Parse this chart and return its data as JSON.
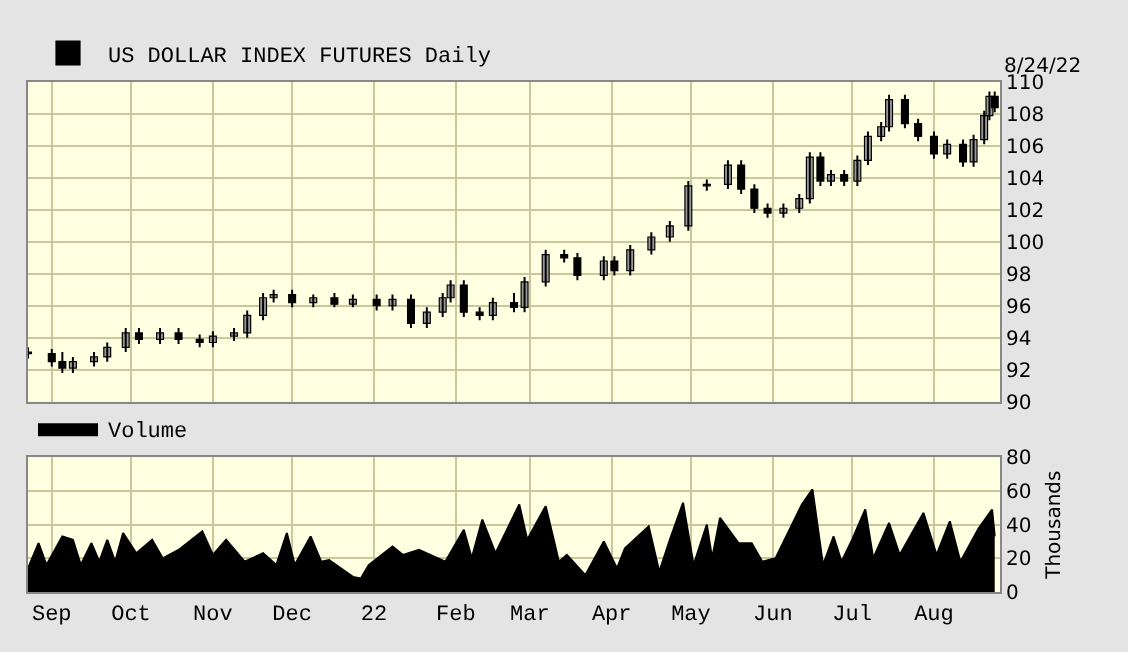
{
  "chart_data": [
    {
      "type": "candlestick",
      "legend": "top left",
      "grid": true,
      "tick_labels": "y",
      "annotations": [
        "8/24/22"
      ],
      "x": [
        "2021-08-23",
        "2021-09-01",
        "2021-09-05",
        "2021-09-09",
        "2021-09-17",
        "2021-09-22",
        "2021-09-29",
        "2021-10-04",
        "2021-10-12",
        "2021-10-19",
        "2021-10-27",
        "2021-11-01",
        "2021-11-09",
        "2021-11-14",
        "2021-11-20",
        "2021-11-24",
        "2021-12-01",
        "2021-12-09",
        "2021-12-17",
        "2021-12-24",
        "2022-01-02",
        "2022-01-08",
        "2022-01-15",
        "2022-01-21",
        "2022-01-27",
        "2022-01-30",
        "2022-02-04",
        "2022-02-10",
        "2022-02-15",
        "2022-02-23",
        "2022-02-27",
        "2022-03-07",
        "2022-03-14",
        "2022-03-19",
        "2022-03-29",
        "2022-04-02",
        "2022-04-08",
        "2022-04-16",
        "2022-04-23",
        "2022-04-30",
        "2022-05-07",
        "2022-05-15",
        "2022-05-20",
        "2022-05-25",
        "2022-05-30",
        "2022-06-05",
        "2022-06-11",
        "2022-06-15",
        "2022-06-19",
        "2022-06-23",
        "2022-06-28",
        "2022-07-03",
        "2022-07-07",
        "2022-07-12",
        "2022-07-15",
        "2022-07-21",
        "2022-07-26",
        "2022-08-01",
        "2022-08-06",
        "2022-08-12",
        "2022-08-16",
        "2022-08-20",
        "2022-08-22",
        "2022-08-24"
      ],
      "series": [
        {
          "name": "US DOLLAR INDEX FUTURES Daily",
          "color": "#000000",
          "ohlc": [
            [
              93.1,
              93.4,
              92.7,
              93.0
            ],
            [
              93.0,
              93.3,
              92.2,
              92.5
            ],
            [
              92.5,
              93.1,
              91.8,
              92.1
            ],
            [
              92.1,
              92.8,
              91.8,
              92.5
            ],
            [
              92.5,
              93.1,
              92.2,
              92.8
            ],
            [
              92.8,
              93.7,
              92.5,
              93.4
            ],
            [
              93.4,
              94.6,
              93.1,
              94.3
            ],
            [
              94.3,
              94.6,
              93.6,
              93.9
            ],
            [
              93.9,
              94.6,
              93.6,
              94.3
            ],
            [
              94.3,
              94.6,
              93.6,
              93.9
            ],
            [
              93.9,
              94.2,
              93.4,
              93.7
            ],
            [
              93.7,
              94.4,
              93.4,
              94.1
            ],
            [
              94.1,
              94.6,
              93.8,
              94.3
            ],
            [
              94.3,
              95.7,
              94.0,
              95.4
            ],
            [
              95.4,
              96.8,
              95.1,
              96.5
            ],
            [
              96.5,
              97.0,
              96.2,
              96.7
            ],
            [
              96.7,
              97.0,
              95.9,
              96.2
            ],
            [
              96.2,
              96.7,
              95.9,
              96.5
            ],
            [
              96.5,
              96.8,
              95.9,
              96.1
            ],
            [
              96.1,
              96.7,
              95.9,
              96.4
            ],
            [
              96.4,
              96.7,
              95.7,
              96.0
            ],
            [
              96.0,
              96.7,
              95.7,
              96.4
            ],
            [
              96.4,
              96.7,
              94.6,
              94.9
            ],
            [
              94.9,
              95.9,
              94.6,
              95.6
            ],
            [
              95.6,
              96.8,
              95.3,
              96.5
            ],
            [
              96.5,
              97.6,
              96.2,
              97.3
            ],
            [
              97.3,
              97.6,
              95.3,
              95.6
            ],
            [
              95.6,
              95.9,
              95.1,
              95.4
            ],
            [
              95.4,
              96.5,
              95.1,
              96.2
            ],
            [
              96.2,
              96.8,
              95.6,
              95.9
            ],
            [
              95.9,
              97.8,
              95.6,
              97.5
            ],
            [
              97.5,
              99.5,
              97.2,
              99.2
            ],
            [
              99.2,
              99.5,
              98.7,
              99.0
            ],
            [
              99.0,
              99.3,
              97.6,
              97.9
            ],
            [
              97.9,
              99.1,
              97.6,
              98.8
            ],
            [
              98.8,
              99.1,
              97.9,
              98.2
            ],
            [
              98.2,
              99.8,
              97.9,
              99.5
            ],
            [
              99.5,
              100.6,
              99.2,
              100.3
            ],
            [
              100.3,
              101.3,
              100.0,
              101.0
            ],
            [
              101.0,
              103.8,
              100.7,
              103.5
            ],
            [
              103.5,
              103.9,
              103.2,
              103.6
            ],
            [
              103.6,
              105.1,
              103.3,
              104.8
            ],
            [
              104.8,
              105.1,
              103.0,
              103.3
            ],
            [
              103.3,
              103.6,
              101.8,
              102.1
            ],
            [
              102.1,
              102.4,
              101.5,
              101.8
            ],
            [
              101.8,
              102.4,
              101.5,
              102.1
            ],
            [
              102.1,
              103.0,
              101.8,
              102.7
            ],
            [
              102.7,
              105.6,
              102.4,
              105.3
            ],
            [
              105.3,
              105.6,
              103.5,
              103.8
            ],
            [
              103.8,
              104.5,
              103.5,
              104.2
            ],
            [
              104.2,
              104.5,
              103.5,
              103.8
            ],
            [
              103.8,
              105.4,
              103.5,
              105.1
            ],
            [
              105.1,
              106.9,
              104.8,
              106.6
            ],
            [
              106.6,
              107.5,
              106.3,
              107.2
            ],
            [
              107.2,
              109.2,
              106.9,
              108.9
            ],
            [
              108.9,
              109.2,
              107.1,
              107.4
            ],
            [
              107.4,
              107.7,
              106.3,
              106.6
            ],
            [
              106.6,
              106.9,
              105.2,
              105.5
            ],
            [
              105.5,
              106.4,
              105.2,
              106.1
            ],
            [
              106.1,
              106.4,
              104.7,
              105.0
            ],
            [
              105.0,
              106.7,
              104.7,
              106.4
            ],
            [
              106.4,
              108.2,
              106.1,
              107.9
            ],
            [
              107.9,
              109.4,
              107.6,
              109.1
            ],
            [
              109.1,
              109.4,
              108.1,
              108.4
            ]
          ]
        }
      ],
      "xlim": [
        "2021-08-23",
        "2022-08-26"
      ],
      "xticks": [
        {
          "value": "2021-09-01",
          "label": null
        },
        {
          "value": "2021-10-01",
          "label": null
        },
        {
          "value": "2021-11-01",
          "label": null
        },
        {
          "value": "2021-12-01",
          "label": null
        },
        {
          "value": "2022-01-01",
          "label": null
        },
        {
          "value": "2022-02-01",
          "label": null
        },
        {
          "value": "2022-03-01",
          "label": null
        },
        {
          "value": "2022-04-01",
          "label": null
        },
        {
          "value": "2022-05-01",
          "label": null
        },
        {
          "value": "2022-06-01",
          "label": null
        },
        {
          "value": "2022-07-01",
          "label": null
        },
        {
          "value": "2022-08-01",
          "label": null
        }
      ],
      "ylim": [
        90,
        110
      ],
      "yticks": [
        90,
        92,
        94,
        96,
        98,
        100,
        102,
        104,
        106,
        108,
        110
      ]
    },
    {
      "type": "area",
      "legend": "top left",
      "grid": true,
      "ylabel": "Thousands",
      "series": [
        {
          "name": "Volume",
          "color": "#000000",
          "x": [
            "2021-08-23",
            "2021-08-27",
            "2021-08-30",
            "2021-09-05",
            "2021-09-09",
            "2021-09-12",
            "2021-09-16",
            "2021-09-19",
            "2021-09-22",
            "2021-09-25",
            "2021-09-28",
            "2021-10-03",
            "2021-10-09",
            "2021-10-13",
            "2021-10-19",
            "2021-10-28",
            "2021-11-01",
            "2021-11-06",
            "2021-11-13",
            "2021-11-20",
            "2021-11-25",
            "2021-11-29",
            "2021-12-02",
            "2021-12-08",
            "2021-12-12",
            "2021-12-15",
            "2021-12-24",
            "2021-12-27",
            "2021-12-30",
            "2022-01-08",
            "2022-01-12",
            "2022-01-18",
            "2022-01-28",
            "2022-02-04",
            "2022-02-07",
            "2022-02-11",
            "2022-02-16",
            "2022-02-25",
            "2022-02-28",
            "2022-03-07",
            "2022-03-12",
            "2022-03-15",
            "2022-03-22",
            "2022-03-29",
            "2022-04-03",
            "2022-04-06",
            "2022-04-15",
            "2022-04-19",
            "2022-04-23",
            "2022-04-28",
            "2022-05-02",
            "2022-05-07",
            "2022-05-09",
            "2022-05-12",
            "2022-05-19",
            "2022-05-24",
            "2022-05-28",
            "2022-06-02",
            "2022-06-12",
            "2022-06-16",
            "2022-06-20",
            "2022-06-24",
            "2022-06-27",
            "2022-07-01",
            "2022-07-06",
            "2022-07-09",
            "2022-07-15",
            "2022-07-19",
            "2022-07-28",
            "2022-08-02",
            "2022-08-07",
            "2022-08-11",
            "2022-08-18",
            "2022-08-23",
            "2022-08-24"
          ],
          "values": [
            14,
            29,
            16,
            33,
            31,
            16,
            29,
            18,
            31,
            18,
            35,
            23,
            31,
            20,
            25,
            36,
            22,
            31,
            18,
            23,
            16,
            35,
            16,
            33,
            18,
            19,
            9,
            8,
            16,
            27,
            22,
            25,
            18,
            37,
            20,
            43,
            23,
            52,
            31,
            51,
            18,
            22,
            10,
            30,
            14,
            26,
            39,
            12,
            31,
            53,
            16,
            40,
            20,
            44,
            29,
            29,
            18,
            20,
            52,
            61,
            16,
            33,
            18,
            31,
            49,
            20,
            41,
            22,
            47,
            22,
            42,
            18,
            38,
            49,
            33
          ]
        }
      ],
      "xlim": [
        "2021-08-23",
        "2022-08-26"
      ],
      "xticks": [
        {
          "value": "2021-09-01",
          "label": "Sep"
        },
        {
          "value": "2021-10-01",
          "label": "Oct"
        },
        {
          "value": "2021-11-01",
          "label": "Nov"
        },
        {
          "value": "2021-12-01",
          "label": "Dec"
        },
        {
          "value": "2022-01-01",
          "label": "22"
        },
        {
          "value": "2022-02-01",
          "label": "Feb"
        },
        {
          "value": "2022-03-01",
          "label": "Mar"
        },
        {
          "value": "2022-04-01",
          "label": "Apr"
        },
        {
          "value": "2022-05-01",
          "label": "May"
        },
        {
          "value": "2022-06-01",
          "label": "Jun"
        },
        {
          "value": "2022-07-01",
          "label": "Jul"
        },
        {
          "value": "2022-08-01",
          "label": "Aug"
        }
      ],
      "ylim": [
        0,
        80
      ],
      "yticks": [
        0,
        20,
        40,
        60,
        80
      ]
    }
  ]
}
